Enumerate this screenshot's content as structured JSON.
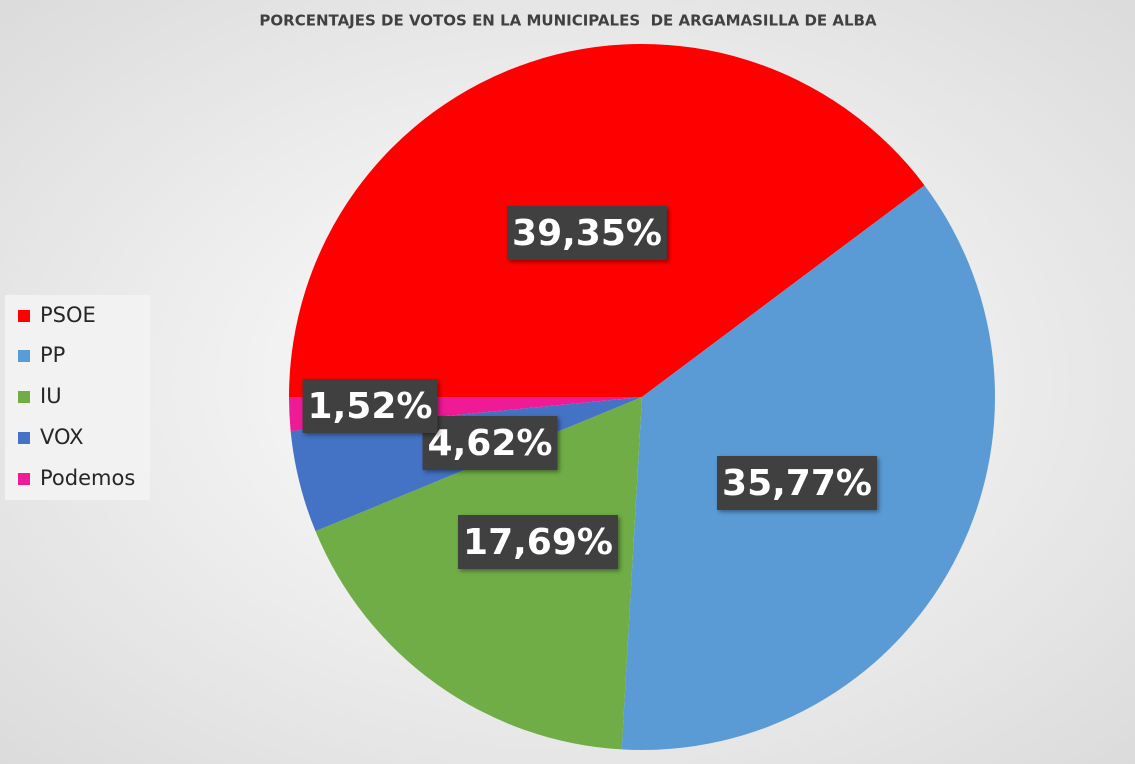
{
  "chart_data": {
    "type": "pie",
    "title": "PORCENTAJES DE VOTOS EN LA MUNICIPALES  DE ARGAMASILLA DE ALBA",
    "categories": [
      "PSOE",
      "PP",
      "IU",
      "VOX",
      "Podemos"
    ],
    "values": [
      39.35,
      35.77,
      17.69,
      4.62,
      1.52
    ],
    "value_labels": [
      "39,35%",
      "35,77%",
      "17,69%",
      "4,62%",
      "1,52%"
    ],
    "colors": [
      "#ff0000",
      "#5b9bd5",
      "#70ad47",
      "#4472c4",
      "#ee1a96"
    ],
    "legend": "left"
  }
}
